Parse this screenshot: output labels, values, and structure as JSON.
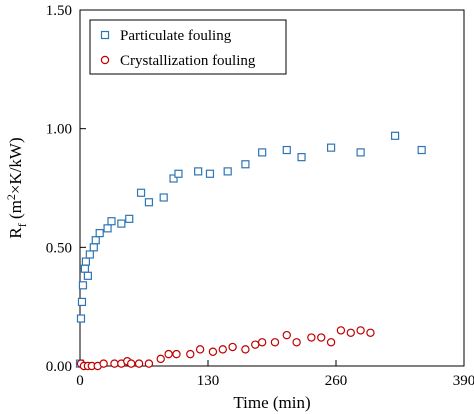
{
  "chart_data": {
    "type": "scatter",
    "title": "",
    "xlabel": "Time (min)",
    "ylabel": {
      "base": "R",
      "base_sub": "f",
      "open": " (m",
      "sup": "2",
      "rest": "×K/kW)"
    },
    "xlim": [
      0,
      390
    ],
    "ylim": [
      0,
      1.5
    ],
    "x_ticks": [
      0,
      130,
      260,
      390
    ],
    "x_tick_labels": [
      "0",
      "130",
      "260",
      "390"
    ],
    "y_ticks": [
      0,
      0.5,
      1.0,
      1.5
    ],
    "y_tick_labels": [
      "0.00",
      "0.50",
      "1.00",
      "1.50"
    ],
    "grid": false,
    "legend_position": "top-left",
    "series": [
      {
        "name": "Particulate fouling",
        "marker": "square",
        "color": "#2e75b6",
        "points": [
          [
            0,
            0.01
          ],
          [
            1,
            0.2
          ],
          [
            2,
            0.27
          ],
          [
            3,
            0.34
          ],
          [
            5,
            0.41
          ],
          [
            6,
            0.44
          ],
          [
            8,
            0.38
          ],
          [
            10,
            0.47
          ],
          [
            14,
            0.5
          ],
          [
            16,
            0.53
          ],
          [
            20,
            0.56
          ],
          [
            28,
            0.58
          ],
          [
            32,
            0.61
          ],
          [
            42,
            0.6
          ],
          [
            50,
            0.62
          ],
          [
            62,
            0.73
          ],
          [
            70,
            0.69
          ],
          [
            85,
            0.71
          ],
          [
            95,
            0.79
          ],
          [
            100,
            0.81
          ],
          [
            120,
            0.82
          ],
          [
            132,
            0.81
          ],
          [
            150,
            0.82
          ],
          [
            168,
            0.85
          ],
          [
            185,
            0.9
          ],
          [
            210,
            0.91
          ],
          [
            225,
            0.88
          ],
          [
            255,
            0.92
          ],
          [
            285,
            0.9
          ],
          [
            320,
            0.97
          ],
          [
            347,
            0.91
          ]
        ]
      },
      {
        "name": "Crystallization fouling",
        "marker": "circle",
        "color": "#c00000",
        "points": [
          [
            1,
            0.01
          ],
          [
            4,
            0.0
          ],
          [
            8,
            0.0
          ],
          [
            12,
            0.0
          ],
          [
            18,
            0.0
          ],
          [
            24,
            0.01
          ],
          [
            35,
            0.01
          ],
          [
            42,
            0.01
          ],
          [
            48,
            0.02
          ],
          [
            52,
            0.01
          ],
          [
            60,
            0.01
          ],
          [
            70,
            0.01
          ],
          [
            82,
            0.03
          ],
          [
            90,
            0.05
          ],
          [
            98,
            0.05
          ],
          [
            112,
            0.05
          ],
          [
            122,
            0.07
          ],
          [
            135,
            0.06
          ],
          [
            145,
            0.07
          ],
          [
            155,
            0.08
          ],
          [
            168,
            0.07
          ],
          [
            178,
            0.09
          ],
          [
            185,
            0.1
          ],
          [
            198,
            0.1
          ],
          [
            210,
            0.13
          ],
          [
            220,
            0.1
          ],
          [
            235,
            0.12
          ],
          [
            245,
            0.12
          ],
          [
            255,
            0.1
          ],
          [
            265,
            0.15
          ],
          [
            275,
            0.14
          ],
          [
            285,
            0.15
          ],
          [
            295,
            0.14
          ]
        ]
      }
    ]
  }
}
